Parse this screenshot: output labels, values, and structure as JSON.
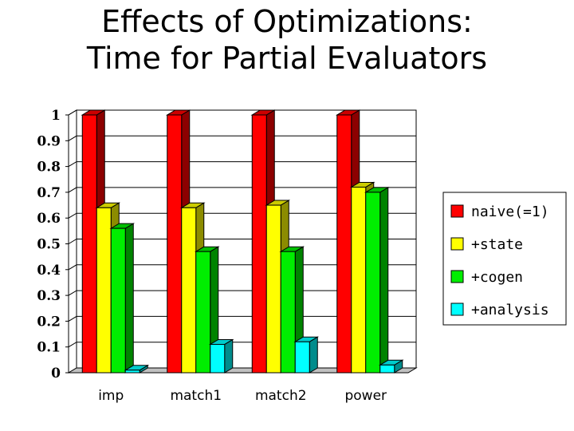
{
  "chart_data": {
    "type": "bar",
    "title_lines": [
      "Effects of Optimizations:",
      "Time for Partial Evaluators"
    ],
    "categories": [
      "imp",
      "match1",
      "match2",
      "power"
    ],
    "series": [
      {
        "name": "naive(=1)",
        "values": [
          1.0,
          1.0,
          1.0,
          1.0
        ],
        "color": "#ff0000"
      },
      {
        "name": "+state",
        "values": [
          0.64,
          0.64,
          0.65,
          0.72
        ],
        "color": "#ffff00"
      },
      {
        "name": "+cogen",
        "values": [
          0.56,
          0.47,
          0.47,
          0.7
        ],
        "color": "#00ee00"
      },
      {
        "name": "+analysis",
        "values": [
          0.01,
          0.11,
          0.12,
          0.03
        ],
        "color": "#00ffff"
      }
    ],
    "yticks": [
      "0",
      "0.1",
      "0.2",
      "0.3",
      "0.4",
      "0.5",
      "0.6",
      "0.7",
      "0.8",
      "0.9",
      "1"
    ],
    "ylim": [
      0,
      1
    ],
    "grid": true,
    "style": "3d",
    "legend_position": "right"
  }
}
